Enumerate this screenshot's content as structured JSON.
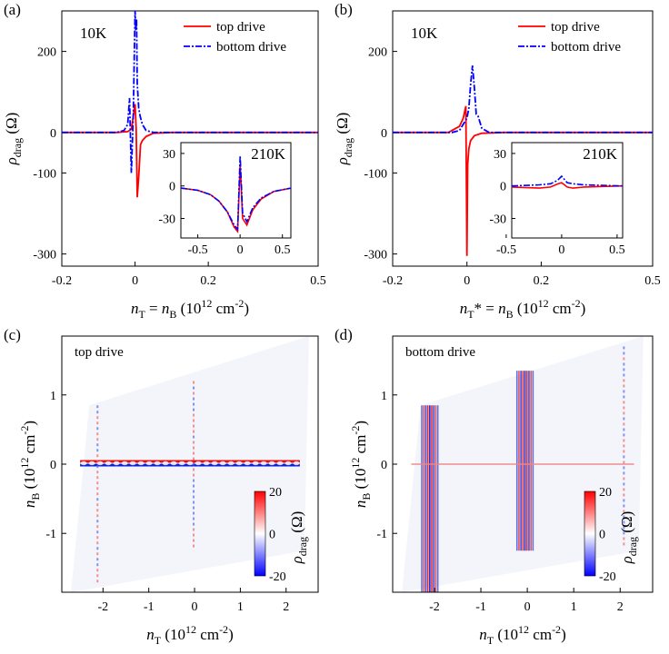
{
  "chart_data": [
    {
      "panel": "(a)",
      "type": "line",
      "annotation": "10K",
      "xlabel": {
        "n": "n",
        "n_sub": "T",
        "eq": " = ",
        "m": "n",
        "m_sub": "B",
        "unit_pre": " (10",
        "unit_exp": "12",
        "unit_mid": " cm",
        "unit_exp2": "-2",
        "unit_post": ")"
      },
      "ylabel": {
        "sym": "ρ",
        "sub": "drag",
        "unit": "(Ω)"
      },
      "xlim": [
        -0.2,
        0.5
      ],
      "ylim": [
        -330,
        300
      ],
      "xticks": [
        -0.2,
        0,
        0.2,
        0.5
      ],
      "xtick_labels": [
        "-0.2",
        "0",
        "0.2",
        "0.5"
      ],
      "yticks": [
        200,
        0,
        -100,
        -300
      ],
      "ytick_labels": [
        "200",
        "0",
        "-100",
        "-300"
      ],
      "legend": [
        "top drive",
        "bottom drive"
      ],
      "series": [
        {
          "name": "top drive",
          "color": "#ff0000",
          "dash": "solid",
          "x": [
            -0.2,
            -0.05,
            -0.02,
            -0.01,
            -0.005,
            0,
            0.003,
            0.006,
            0.01,
            0.015,
            0.02,
            0.03,
            0.05,
            0.1,
            0.5
          ],
          "y": [
            0,
            0,
            2,
            8,
            40,
            70,
            10,
            -160,
            -110,
            -30,
            -20,
            -10,
            -2,
            0,
            0
          ]
        },
        {
          "name": "bottom drive",
          "color": "#0000ff",
          "dash": "dashdot",
          "x": [
            -0.2,
            -0.05,
            -0.03,
            -0.02,
            -0.015,
            -0.01,
            -0.005,
            0,
            0.002,
            0.004,
            0.006,
            0.01,
            0.014,
            0.02,
            0.03,
            0.05,
            0.5
          ],
          "y": [
            0,
            0,
            5,
            20,
            85,
            -100,
            40,
            300,
            250,
            280,
            120,
            60,
            40,
            20,
            5,
            0,
            0
          ]
        }
      ],
      "inset": {
        "annotation": "210K",
        "xlim": [
          -0.7,
          0.6
        ],
        "ylim": [
          -48,
          40
        ],
        "xticks": [
          -0.5,
          0,
          0.5
        ],
        "xtick_labels": [
          "-0.5",
          "0",
          "0.5"
        ],
        "yticks": [
          30,
          0,
          -30
        ],
        "ytick_labels": [
          "30",
          "0",
          "-30"
        ],
        "series": [
          {
            "name": "top drive",
            "color": "#ff0000",
            "dash": "solid",
            "x": [
              -0.7,
              -0.5,
              -0.35,
              -0.25,
              -0.15,
              -0.07,
              -0.03,
              0,
              0.03,
              0.08,
              0.15,
              0.25,
              0.4,
              0.6
            ],
            "y": [
              -2,
              -4,
              -8,
              -14,
              -24,
              -38,
              -42,
              20,
              -30,
              -36,
              -22,
              -12,
              -5,
              -2
            ]
          },
          {
            "name": "bottom drive",
            "color": "#0000ff",
            "dash": "dashdot",
            "x": [
              -0.7,
              -0.5,
              -0.35,
              -0.25,
              -0.15,
              -0.07,
              -0.03,
              0,
              0.03,
              0.08,
              0.15,
              0.25,
              0.4,
              0.6
            ],
            "y": [
              -2,
              -4,
              -8,
              -14,
              -24,
              -36,
              -40,
              28,
              -25,
              -33,
              -20,
              -11,
              -5,
              -2
            ]
          }
        ]
      }
    },
    {
      "panel": "(b)",
      "type": "line",
      "annotation": "10K",
      "xlabel": {
        "n": "n",
        "n_sub": "T",
        "eq": "* = ",
        "m": "n",
        "m_sub": "B",
        "unit_pre": " (10",
        "unit_exp": "12",
        "unit_mid": " cm",
        "unit_exp2": "-2",
        "unit_post": ")"
      },
      "ylabel": {
        "sym": "ρ",
        "sub": "drag",
        "unit": "(Ω)"
      },
      "xlim": [
        -0.2,
        0.5
      ],
      "ylim": [
        -330,
        300
      ],
      "xticks": [
        -0.2,
        0,
        0.2,
        0.5
      ],
      "xtick_labels": [
        "-0.2",
        "0",
        "0.2",
        "0.5"
      ],
      "yticks": [
        200,
        0,
        -100,
        -300
      ],
      "ytick_labels": [
        "200",
        "0",
        "-100",
        "-300"
      ],
      "legend": [
        "top drive",
        "bottom drive"
      ],
      "series": [
        {
          "name": "top drive",
          "color": "#ff0000",
          "dash": "solid",
          "x": [
            -0.2,
            -0.05,
            -0.02,
            -0.01,
            -0.003,
            0,
            0.002,
            0.005,
            0.01,
            0.02,
            0.04,
            0.1,
            0.5
          ],
          "y": [
            0,
            0,
            15,
            35,
            65,
            -305,
            -80,
            -40,
            -20,
            -8,
            -2,
            0,
            0
          ]
        },
        {
          "name": "bottom drive",
          "color": "#0000ff",
          "dash": "dashdot",
          "x": [
            -0.2,
            -0.04,
            -0.02,
            -0.01,
            0,
            0.005,
            0.01,
            0.015,
            0.02,
            0.025,
            0.03,
            0.04,
            0.06,
            0.5
          ],
          "y": [
            0,
            0,
            5,
            20,
            35,
            60,
            120,
            165,
            110,
            45,
            40,
            10,
            0,
            0
          ]
        }
      ],
      "inset": {
        "annotation": "210K",
        "xlim": [
          -0.45,
          0.55
        ],
        "ylim": [
          -48,
          40
        ],
        "xticks": [
          -0.5,
          0,
          0.5
        ],
        "xtick_labels": [
          "-0.5",
          "0",
          "0.5"
        ],
        "yticks": [
          30,
          0,
          -30
        ],
        "ytick_labels": [
          "30",
          "0",
          "-30"
        ],
        "series": [
          {
            "name": "top drive",
            "color": "#ff0000",
            "dash": "solid",
            "x": [
              -0.45,
              -0.2,
              -0.1,
              -0.03,
              0,
              0.05,
              0.1,
              0.2,
              0.55
            ],
            "y": [
              -1,
              -2,
              -1,
              2,
              3,
              -1,
              -2,
              -1,
              0
            ]
          },
          {
            "name": "bottom drive",
            "color": "#0000ff",
            "dash": "dashdot",
            "x": [
              -0.45,
              -0.2,
              -0.1,
              -0.04,
              0,
              0.05,
              0.1,
              0.2,
              0.55
            ],
            "y": [
              0,
              1,
              2,
              5,
              9,
              3,
              2,
              1,
              0
            ]
          }
        ]
      }
    },
    {
      "panel": "(c)",
      "type": "heatmap",
      "annotation": "top drive",
      "xlabel": {
        "n": "n",
        "n_sub": "T",
        "unit_pre": " (10",
        "unit_exp": "12",
        "unit_mid": " cm",
        "unit_exp2": "-2",
        "unit_post": ")"
      },
      "ylabel": {
        "n": "n",
        "n_sub": "B",
        "unit_pre": " (10",
        "unit_exp": "12",
        "unit_mid": " cm",
        "unit_exp2": "-2",
        "unit_post": ")"
      },
      "xlim": [
        -2.9,
        2.7
      ],
      "ylim": [
        -1.85,
        1.85
      ],
      "xticks": [
        -2,
        -1,
        0,
        1,
        2
      ],
      "xtick_labels": [
        "-2",
        "-1",
        "0",
        "1",
        "2"
      ],
      "yticks": [
        1,
        0,
        -1
      ],
      "ytick_labels": [
        "1",
        "0",
        "-1"
      ],
      "colorbar": {
        "label_sym": "ρ",
        "label_sub": "drag",
        "unit": "(Ω)",
        "ticks": [
          "20",
          "0",
          "-20"
        ],
        "range": [
          -20,
          20
        ]
      },
      "features": [
        {
          "kind": "horizontal_line",
          "at_nB": 0.0,
          "from_nT": -2.5,
          "to_nT": 2.3,
          "strength": "strong"
        },
        {
          "kind": "vertical_line",
          "at_nT": -2.1,
          "from_nB": -1.7,
          "to_nB": 0.85,
          "strength": "weak"
        },
        {
          "kind": "vertical_line",
          "at_nT": 0.0,
          "from_nB": -1.2,
          "to_nB": 1.2,
          "strength": "weak"
        }
      ]
    },
    {
      "panel": "(d)",
      "type": "heatmap",
      "annotation": "bottom drive",
      "xlabel": {
        "n": "n",
        "n_sub": "T",
        "unit_pre": " (10",
        "unit_exp": "12",
        "unit_mid": " cm",
        "unit_exp2": "-2",
        "unit_post": ")"
      },
      "ylabel": {
        "n": "n",
        "n_sub": "B",
        "unit_pre": " (10",
        "unit_exp": "12",
        "unit_mid": " cm",
        "unit_exp2": "-2",
        "unit_post": ")"
      },
      "xlim": [
        -2.9,
        2.7
      ],
      "ylim": [
        -1.85,
        1.85
      ],
      "xticks": [
        -2,
        -1,
        0,
        1,
        2
      ],
      "xtick_labels": [
        "-2",
        "-1",
        "0",
        "1",
        "2"
      ],
      "yticks": [
        1,
        0,
        -1
      ],
      "ytick_labels": [
        "1",
        "0",
        "-1"
      ],
      "colorbar": {
        "label_sym": "ρ",
        "label_sub": "drag",
        "unit": "(Ω)",
        "ticks": [
          "20",
          "0",
          "-20"
        ],
        "range": [
          -20,
          20
        ]
      },
      "features": [
        {
          "kind": "vertical_line",
          "at_nT": -2.1,
          "from_nB": -1.85,
          "to_nB": 0.85,
          "strength": "strong"
        },
        {
          "kind": "vertical_line",
          "at_nT": -0.05,
          "from_nB": -1.25,
          "to_nB": 1.35,
          "strength": "strong"
        },
        {
          "kind": "horizontal_line",
          "at_nB": 0.0,
          "from_nT": -2.5,
          "to_nT": 2.3,
          "strength": "weak"
        },
        {
          "kind": "vertical_line",
          "at_nT": 2.1,
          "from_nB": -1.2,
          "to_nB": 1.7,
          "strength": "weak"
        }
      ]
    }
  ]
}
